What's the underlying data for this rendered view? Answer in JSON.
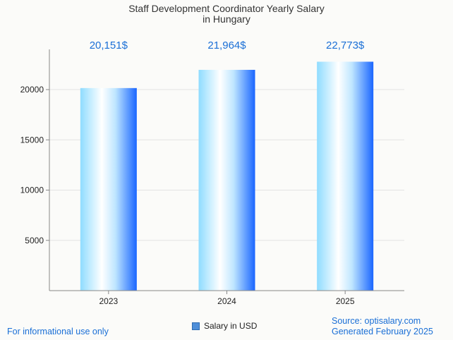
{
  "chart_data": {
    "type": "bar",
    "title_lines": [
      "Staff Development Coordinator Yearly Salary",
      "in Hungary"
    ],
    "categories": [
      "2023",
      "2024",
      "2025"
    ],
    "values": [
      20151,
      21964,
      22773
    ],
    "data_labels": [
      "20,151$",
      "21,964$",
      "22,773$"
    ],
    "yticks": [
      5000,
      10000,
      15000,
      20000
    ],
    "ytick_labels": [
      "5000",
      "10000",
      "15000",
      "20000"
    ],
    "ylim": [
      0,
      24000
    ],
    "xlabel": "",
    "ylabel": "",
    "grid": true,
    "legend": {
      "label": "Salary in USD",
      "position": "bottom-center"
    },
    "colors": {
      "bar_dark": "#1a66ff",
      "bar_light": "#8fdcff",
      "bar_white": "#ffffff",
      "label": "#1a6fd6"
    }
  },
  "footer": {
    "left": "For informational use only",
    "source": "Source: optisalary.com",
    "generated": "Generated February 2025"
  }
}
